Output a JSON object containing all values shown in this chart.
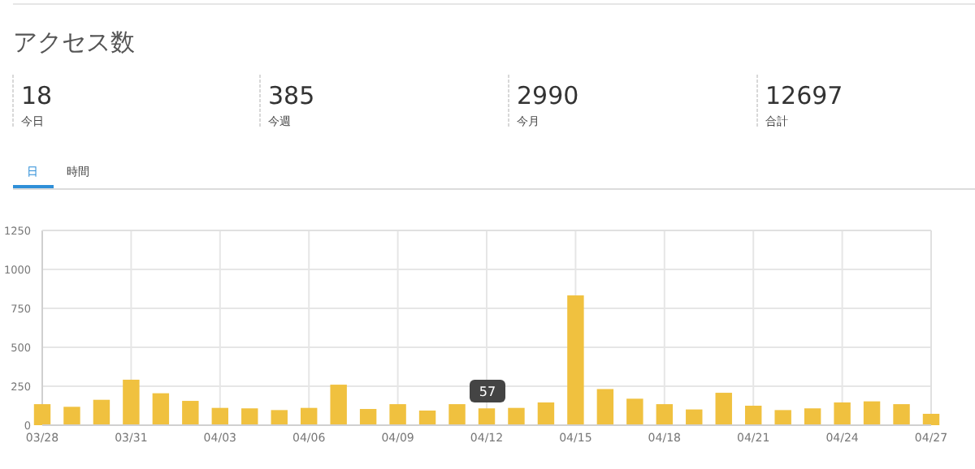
{
  "chart_data": [
    {
      "type": "other",
      "title": "アクセス数",
      "annotations": [
        "18",
        "今日",
        "385",
        "今週",
        "2990",
        "今月",
        "12697",
        "合計",
        "日",
        "時間"
      ]
    },
    {
      "type": "bar",
      "x": [
        "--03-28",
        "--03-29",
        "--03-30",
        "--03-31",
        "--04-01",
        "--04-02",
        "--04-03",
        "--04-04",
        "--04-05",
        "--04-06",
        "--04-07",
        "--04-08",
        "--04-09",
        "--04-10",
        "--04-11",
        "--04-12",
        "--04-13",
        "--04-14",
        "--04-15",
        "--04-16",
        "--04-17",
        "--04-18",
        "--04-19",
        "--04-20",
        "--04-21",
        "--04-22",
        "--04-23",
        "--04-24",
        "--04-25",
        "--04-26",
        "--04-27"
      ],
      "values": [
        135,
        118,
        163,
        292,
        205,
        156,
        111,
        108,
        97,
        111,
        260,
        104,
        135,
        94,
        135,
        108,
        111,
        146,
        833,
        232,
        170,
        135,
        101,
        208,
        125,
        97,
        108,
        146,
        153,
        135,
        73
      ],
      "color": "#f0c13f",
      "xlim": [
        "--03-28",
        "--04-27"
      ],
      "xticks": [
        {
          "value": "--03-28",
          "label": "03/28"
        },
        {
          "value": "--03-31",
          "label": "03/31"
        },
        {
          "value": "--04-03",
          "label": "04/03"
        },
        {
          "value": "--04-06",
          "label": "04/06"
        },
        {
          "value": "--04-09",
          "label": "04/09"
        },
        {
          "value": "--04-12",
          "label": "04/12"
        },
        {
          "value": "--04-15",
          "label": "04/15"
        },
        {
          "value": "--04-18",
          "label": "04/18"
        },
        {
          "value": "--04-21",
          "label": "04/21"
        },
        {
          "value": "--04-24",
          "label": "04/24"
        },
        {
          "value": "--04-27",
          "label": "04/27"
        }
      ],
      "ylim": [
        0,
        1250
      ],
      "yticks": [
        0,
        250,
        500,
        750,
        1000,
        1250
      ],
      "grid": true,
      "annotations": [
        "57"
      ]
    }
  ]
}
